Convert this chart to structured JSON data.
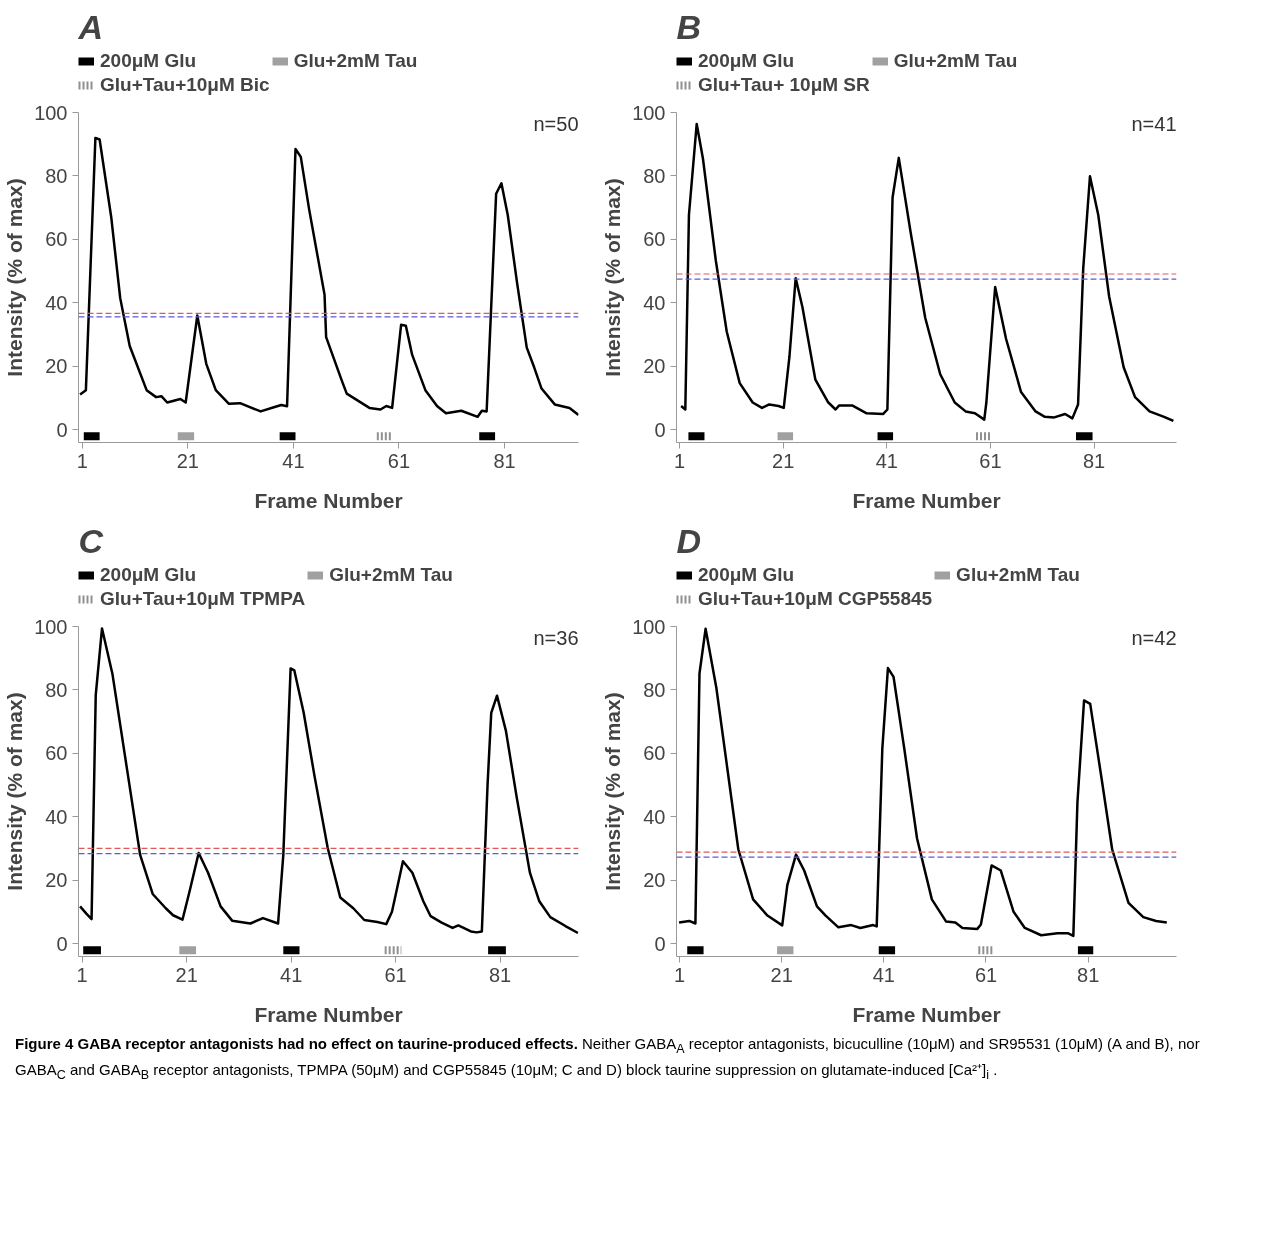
{
  "chart_data": [
    {
      "type": "line",
      "title": "A",
      "xlabel": "Frame Number",
      "ylabel": "Intensity (% of max)",
      "legend": "top",
      "annotations": [
        "n=50"
      ],
      "xlim": [
        0.3,
        95
      ],
      "ylim": [
        -4,
        100
      ],
      "xticks": [
        1,
        21,
        41,
        61,
        81
      ],
      "yticks": [
        0,
        20,
        40,
        60,
        80,
        100
      ],
      "ref_lines": [
        {
          "axis": "y",
          "value": 36.7,
          "color": "#e05a5a",
          "line_style": "dashed"
        },
        {
          "axis": "y",
          "value": 35.6,
          "color": "#5a5ae0",
          "line_style": "dashed"
        }
      ],
      "series": [
        {
          "color": "#000000",
          "x": [
            0.6,
            1.7,
            3.5,
            4.3,
            6.5,
            8.2,
            10,
            13.2,
            15,
            16,
            17.1,
            19.6,
            20.6,
            22.8,
            24.5,
            26.3,
            28.8,
            30.9,
            34.8,
            37.3,
            38.7,
            39.8,
            41.4,
            42.4,
            44,
            46.9,
            47.2,
            50.1,
            51.1,
            55.4,
            57.5,
            58.6,
            59.7,
            61.4,
            62.3,
            63.5,
            66,
            68.2,
            69.9,
            72.8,
            75.9,
            76.7,
            77.6,
            79.4,
            80.4,
            81.6,
            83.4,
            85.2,
            86.6,
            88,
            90.5,
            93.3,
            95
          ],
          "values": [
            11.1,
            12.5,
            92,
            91.5,
            67,
            41.5,
            26.4,
            12.5,
            10.3,
            10.6,
            8.6,
            9.7,
            8.6,
            36,
            20.8,
            12.5,
            8.2,
            8.4,
            5.8,
            7.1,
            7.8,
            7.4,
            88.5,
            86,
            69.3,
            42.6,
            29.2,
            15.8,
            11.4,
            6.9,
            6.4,
            7.5,
            6.9,
            33.1,
            32.8,
            23.6,
            12.5,
            7.5,
            5.2,
            6,
            4.1,
            6,
            5.8,
            74.4,
            77.7,
            67.7,
            45.9,
            25.9,
            19.7,
            13,
            8,
            6.9,
            4.7
          ]
        },
        {
          "name": "200μM Glu",
          "color": "#000000",
          "x": [
            1.3,
            4.3,
            null,
            38.4,
            41.4,
            null,
            76.2,
            79.2
          ],
          "values": [
            -2,
            -2,
            null,
            -2,
            -2,
            null,
            -2,
            -2
          ]
        },
        {
          "name": "Glu+2mM Tau",
          "color": "#a0a0a0",
          "x": [
            19.1,
            22.2
          ],
          "values": [
            -2,
            -2
          ]
        },
        {
          "name": "Glu+Tau+10μM Bic",
          "color": "#909090",
          "line_style": "dotted",
          "x": [
            56.8,
            59.7
          ],
          "values": [
            -2,
            -2
          ]
        }
      ]
    },
    {
      "type": "line",
      "title": "B",
      "xlabel": "Frame Number",
      "ylabel": "Intensity (% of max)",
      "legend": "top",
      "annotations": [
        "n=41"
      ],
      "xlim": [
        0.4,
        96.9
      ],
      "ylim": [
        -4,
        100
      ],
      "xticks": [
        1,
        21,
        41,
        61,
        81
      ],
      "yticks": [
        0,
        20,
        40,
        60,
        80,
        100
      ],
      "ref_lines": [
        {
          "axis": "y",
          "value": 49.1,
          "color": "#e05a5a",
          "line_style": "dashed"
        },
        {
          "axis": "y",
          "value": 47.5,
          "color": "#5a5ae0",
          "line_style": "dashed"
        }
      ],
      "series": [
        {
          "color": "#000000",
          "x": [
            1.3,
            2.1,
            2.8,
            4.3,
            5.5,
            8,
            10.1,
            12.6,
            15.1,
            16.9,
            18.3,
            20.1,
            21.1,
            22.2,
            23.4,
            24.7,
            27.2,
            29.7,
            31.1,
            31.8,
            34.3,
            37.1,
            40.3,
            41.1,
            42.1,
            43.3,
            45.6,
            48.4,
            51.3,
            54.1,
            56.2,
            58,
            59.8,
            60.2,
            61.9,
            64,
            66.9,
            69.7,
            71.5,
            73.3,
            75.4,
            76.8,
            77.9,
            78.9,
            80.2,
            81.8,
            83.9,
            86.7,
            88.9,
            91.7,
            94.5,
            96.3
          ],
          "values": [
            7.5,
            6.4,
            67.7,
            96.4,
            85.5,
            53.2,
            30.9,
            14.7,
            8.6,
            6.9,
            8,
            7.5,
            6.9,
            23.1,
            47.8,
            38.7,
            15.8,
            8.6,
            6.4,
            7.7,
            7.7,
            5.2,
            5,
            6.4,
            73.2,
            85.7,
            62.1,
            35.3,
            17.5,
            8.6,
            5.8,
            5.2,
            3.2,
            8.6,
            45,
            28.7,
            11.9,
            5.8,
            4.1,
            3.9,
            5,
            3.6,
            8,
            50.9,
            79.9,
            67.7,
            42,
            19.7,
            10.3,
            5.8,
            4.1,
            2.8
          ]
        },
        {
          "name": "200μM Glu",
          "color": "#000000",
          "x": [
            2.7,
            5.8,
            null,
            39.2,
            42.2,
            null,
            77.5,
            80.7
          ],
          "values": [
            -2,
            -2,
            null,
            -2,
            -2,
            null,
            -2,
            -2
          ]
        },
        {
          "name": "Glu+2mM Tau",
          "color": "#a0a0a0",
          "x": [
            19.9,
            22.9
          ],
          "values": [
            -2,
            -2
          ]
        },
        {
          "name": "Glu+Tau+ 10μM SR",
          "color": "#909090",
          "line_style": "dotted",
          "x": [
            58.2,
            61.2
          ],
          "values": [
            -2,
            -2
          ]
        }
      ]
    },
    {
      "type": "line",
      "title": "C",
      "xlabel": "Frame Number",
      "ylabel": "Intensity (% of max)",
      "legend": "top",
      "annotations": [
        "n=36"
      ],
      "xlim": [
        0.3,
        96
      ],
      "ylim": [
        -4,
        100
      ],
      "xticks": [
        1,
        21,
        41,
        61,
        81
      ],
      "yticks": [
        0,
        20,
        40,
        60,
        80,
        100
      ],
      "ref_lines": [
        {
          "axis": "y",
          "value": 30.1,
          "color": "#e05a5a",
          "line_style": "dashed"
        },
        {
          "axis": "y",
          "value": 28.4,
          "color": "#5a5ae0",
          "line_style": "dashed"
        }
      ],
      "series": [
        {
          "color": "#000000",
          "x": [
            0.6,
            1.8,
            2.8,
            3.6,
            4.8,
            6.8,
            9.6,
            12.1,
            14.5,
            17,
            18.4,
            20.2,
            21.6,
            23.3,
            25.1,
            27.5,
            29.7,
            33.2,
            35.6,
            38.5,
            39.5,
            40.9,
            41.6,
            43.4,
            45.5,
            48,
            50.4,
            52.9,
            55,
            57.5,
            59.2,
            60.3,
            62.4,
            64.2,
            66.3,
            67.7,
            69.8,
            71.9,
            73,
            75.4,
            76.5,
            77.5,
            78.6,
            79.3,
            80.4,
            82.1,
            84.2,
            86.7,
            88.5,
            90.6,
            93.5,
            95.9
          ],
          "values": [
            11.8,
            9.5,
            7.8,
            78.4,
            99.4,
            85,
            54.9,
            28,
            15.7,
            11.2,
            9,
            7.6,
            16.8,
            28.6,
            22.4,
            11.8,
            7.3,
            6.4,
            8.1,
            6.4,
            28,
            86.8,
            86.2,
            72.8,
            52.6,
            30.2,
            14.6,
            11.2,
            7.5,
            6.9,
            6.2,
            10.1,
            26,
            22.4,
            13.4,
            8.7,
            6.7,
            5,
            5.8,
            3.9,
            3.6,
            3.9,
            50.4,
            72.8,
            78.2,
            67.2,
            45.9,
            22.4,
            13.4,
            8.4,
            5.6,
            3.4
          ]
        },
        {
          "name": "200μM Glu",
          "color": "#000000",
          "x": [
            1.2,
            4.6,
            null,
            39.5,
            42.6,
            null,
            78.7,
            82.1
          ],
          "values": [
            -2,
            -2,
            null,
            -2,
            -2,
            null,
            -2,
            -2
          ]
        },
        {
          "name": "Glu+2mM Tau",
          "color": "#a0a0a0",
          "x": [
            19.6,
            22.8
          ],
          "values": [
            -2,
            -2
          ]
        },
        {
          "name": "Glu+Tau+10μM TPMPA",
          "color": "#909090",
          "line_style": "dotted",
          "x": [
            58.9,
            62.1
          ],
          "values": [
            -2,
            -2
          ]
        }
      ]
    },
    {
      "type": "line",
      "title": "D",
      "xlabel": "Frame Number",
      "ylabel": "Intensity (% of max)",
      "legend": "top",
      "annotations": [
        "n=42",
        "Figure 4 GABA receptor antagonists had no effect on taurine-produced effects.",
        "Neither GABA$_{A}$ receptor antagonists, bicuculline (10μM) and SR95531 (10μM) (A and B), nor GABA$_{C}$ and GABA$_{B}$ receptor antagonists, TPMPA (50μM) and CGP55845 (10μM; C and D) block taurine suppression on glutamate-induced [Ca²⁺]$_{i}$ ."
      ],
      "xlim": [
        0.4,
        98.3
      ],
      "ylim": [
        -4,
        100
      ],
      "xticks": [
        1,
        21,
        41,
        61,
        81
      ],
      "yticks": [
        0,
        20,
        40,
        60,
        80,
        100
      ],
      "ref_lines": [
        {
          "axis": "y",
          "value": 28.9,
          "color": "#e05a5a",
          "line_style": "dashed"
        },
        {
          "axis": "y",
          "value": 27.3,
          "color": "#5a5ae0",
          "line_style": "dashed"
        }
      ],
      "series": [
        {
          "color": "#000000",
          "x": [
            0.9,
            2.9,
            4.1,
            4.9,
            6.1,
            8.2,
            10.4,
            12.5,
            15.4,
            18.2,
            21.1,
            22.1,
            23.8,
            25.4,
            27.9,
            29.6,
            32.1,
            34.6,
            36.4,
            38.9,
            39.6,
            40.7,
            41.8,
            42.9,
            45,
            47.5,
            50.4,
            53.2,
            55,
            56.4,
            59.3,
            60,
            62.1,
            63.9,
            66.4,
            68.6,
            71.8,
            75,
            77.1,
            78.1,
            78.9,
            80.2,
            81.4,
            83.6,
            85.7,
            88.9,
            91.8,
            94.3,
            96.4
          ],
          "values": [
            6.7,
            7.2,
            6.4,
            85.2,
            99.3,
            80.7,
            54.7,
            29.8,
            14,
            8.9,
            5.8,
            18.5,
            28.1,
            23.1,
            11.8,
            8.9,
            5.2,
            5.9,
            5,
            5.9,
            5.5,
            61.5,
            86.9,
            84.1,
            61.5,
            33.2,
            14,
            7,
            6.7,
            5,
            4.7,
            6.1,
            24.7,
            23.1,
            10.1,
            5,
            2.7,
            3.3,
            3.3,
            2.5,
            44.5,
            76.7,
            75.6,
            52.4,
            29.8,
            12.9,
            8.4,
            7.2,
            6.7
          ]
        },
        {
          "name": "200μM Glu",
          "color": "#000000",
          "x": [
            2.5,
            5.7,
            null,
            40,
            43.2,
            null,
            79,
            82
          ],
          "values": [
            -2,
            -2,
            null,
            -2,
            -2,
            null,
            -2,
            -2
          ]
        },
        {
          "name": "Glu+2mM Tau",
          "color": "#a0a0a0",
          "x": [
            20.1,
            23.3
          ],
          "values": [
            -2,
            -2
          ]
        },
        {
          "name": "Glu+Tau+10μM CGP55845",
          "color": "#909090",
          "line_style": "dotted",
          "x": [
            59.5,
            62.5
          ],
          "values": [
            -2,
            -2
          ]
        }
      ]
    }
  ]
}
